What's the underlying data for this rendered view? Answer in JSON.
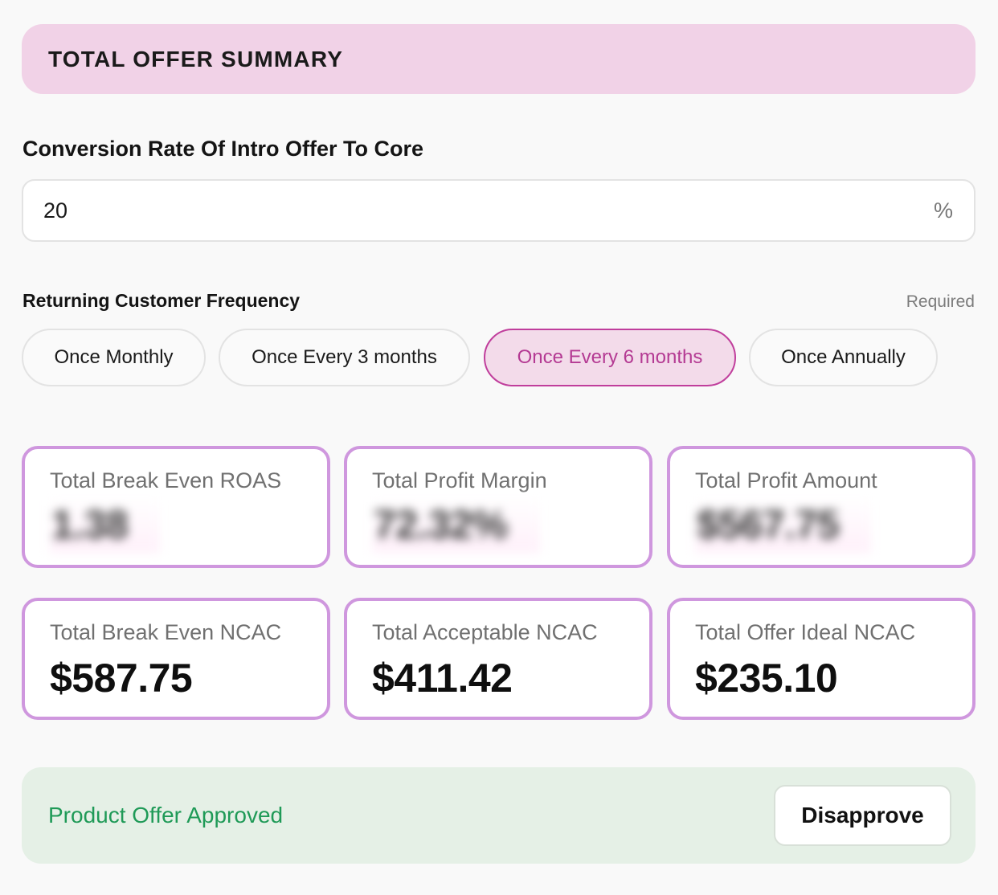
{
  "header": {
    "title": "TOTAL OFFER SUMMARY"
  },
  "conversion": {
    "label": "Conversion Rate Of Intro Offer To Core",
    "value": "20",
    "unit": "%"
  },
  "frequency": {
    "label": "Returning Customer Frequency",
    "required_text": "Required",
    "options": [
      {
        "label": "Once Monthly",
        "selected": false
      },
      {
        "label": "Once Every 3 months",
        "selected": false
      },
      {
        "label": "Once Every 6 months",
        "selected": true
      },
      {
        "label": "Once Annually",
        "selected": false
      }
    ]
  },
  "metrics": [
    {
      "title": "Total Break Even ROAS",
      "value": "1.38",
      "blurred": true
    },
    {
      "title": "Total Profit Margin",
      "value": "72.32%",
      "blurred": true
    },
    {
      "title": "Total Profit Amount",
      "value": "$567.75",
      "blurred": true
    },
    {
      "title": "Total Break Even NCAC",
      "value": "$587.75",
      "blurred": false
    },
    {
      "title": "Total Acceptable NCAC",
      "value": "$411.42",
      "blurred": false
    },
    {
      "title": "Total Offer Ideal NCAC",
      "value": "$235.10",
      "blurred": false
    }
  ],
  "approval": {
    "status": "Product Offer Approved",
    "button_label": "Disapprove"
  },
  "colors": {
    "header_bg": "#f1d2e7",
    "accent": "#c03e9c",
    "card_border": "#cf97de",
    "approved_bg": "#e5f0e6",
    "approved_text": "#1f9a57"
  }
}
